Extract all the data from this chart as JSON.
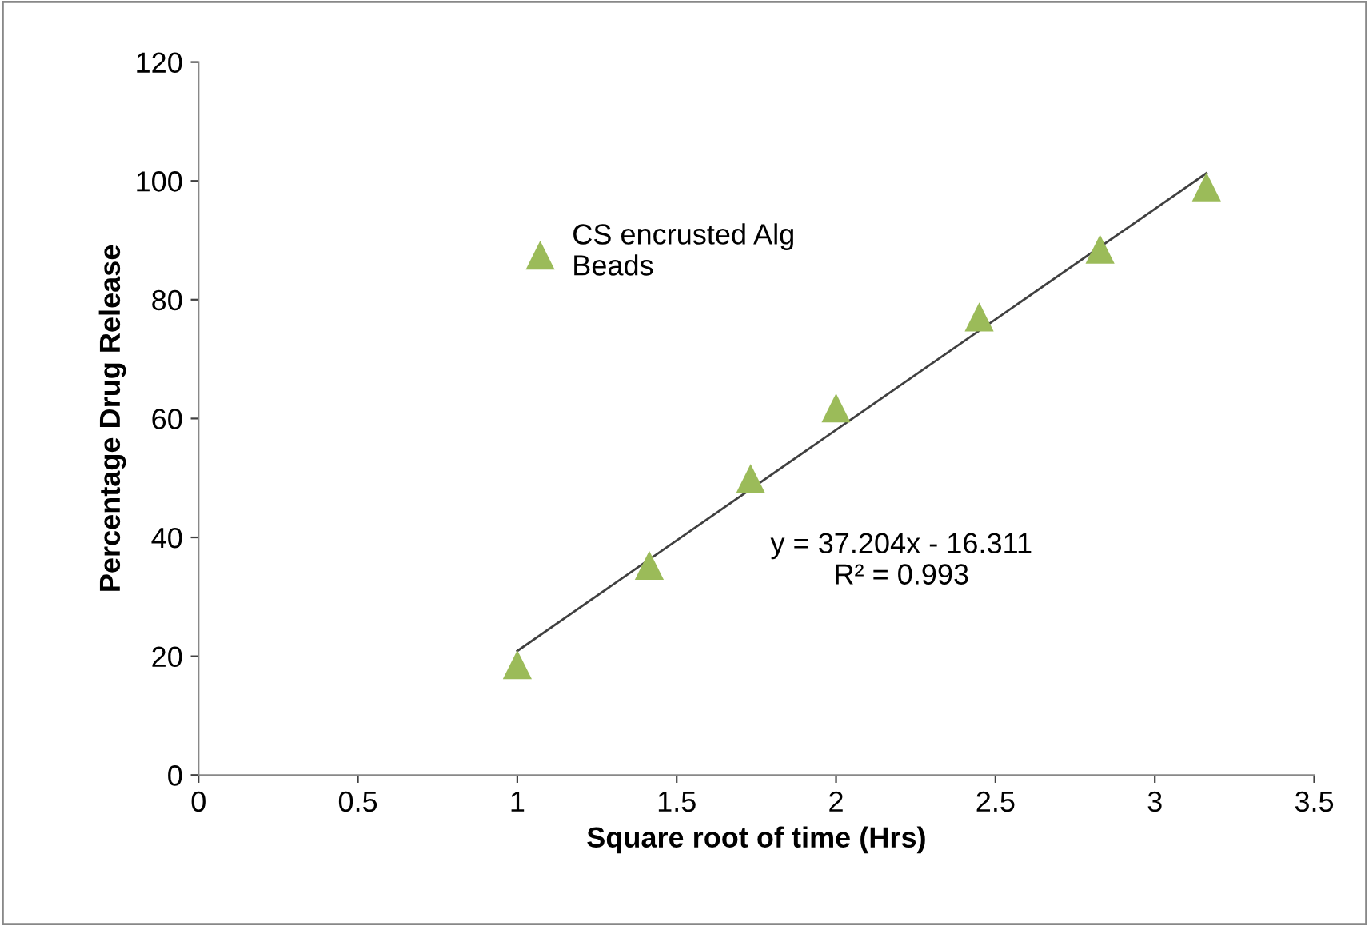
{
  "chart_data": {
    "type": "scatter",
    "xlabel": "Square root of time (Hrs)",
    "ylabel": "Percentage Drug Release",
    "x": [
      1,
      1.414,
      1.732,
      2,
      2.449,
      2.828,
      3.162
    ],
    "series": [
      {
        "name": "CS encrusted Alg\nBeads",
        "color": "#9bbb59",
        "marker": "triangle",
        "values": [
          18.6,
          35.3,
          49.9,
          61.8,
          77.1,
          88.5,
          99
        ]
      },
      {
        "type": "line",
        "color": "#404040",
        "marker": "none",
        "x": [
          1,
          3.162
        ],
        "values": [
          20.9,
          101.3
        ]
      }
    ],
    "annotations": [
      "y = 37.204x - 16.311\nR² = 0.993"
    ],
    "xlim": [
      0,
      3.5
    ],
    "xticks": [
      0,
      0.5,
      1,
      1.5,
      2,
      2.5,
      3,
      3.5
    ],
    "ylim": [
      0,
      120
    ],
    "yticks": [
      0,
      20,
      40,
      60,
      80,
      100,
      120
    ],
    "grid": false,
    "legend": "top left"
  }
}
